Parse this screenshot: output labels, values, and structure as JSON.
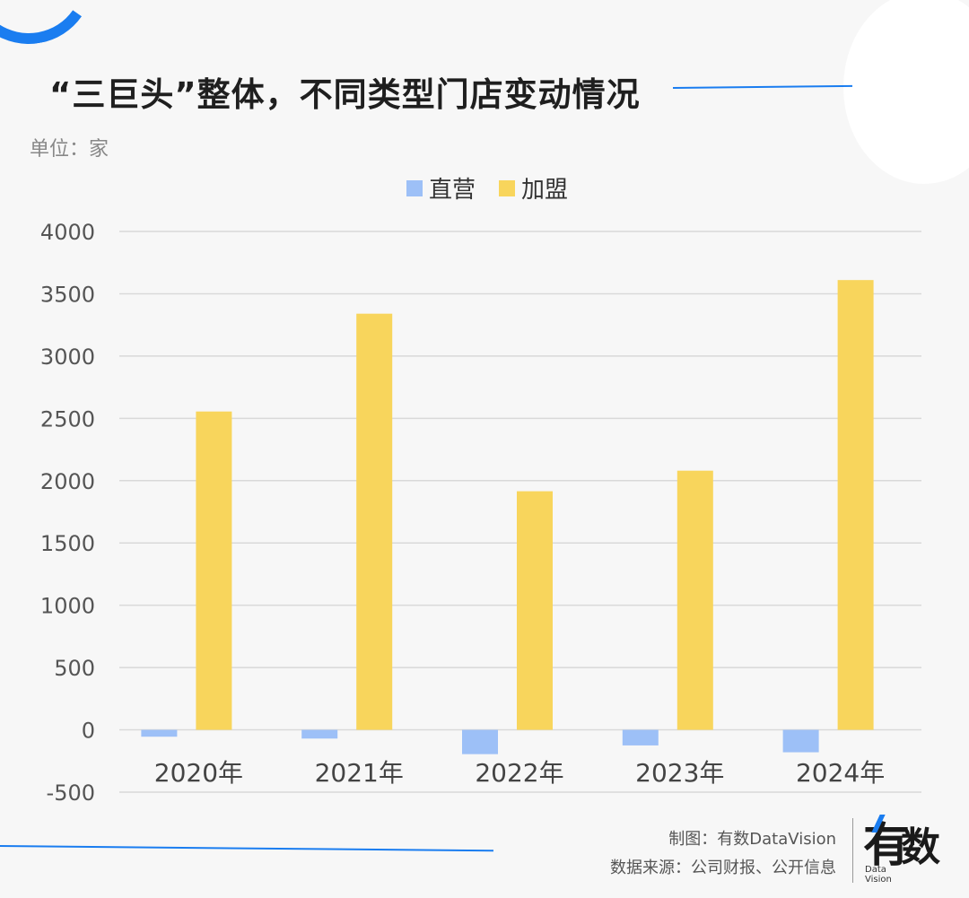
{
  "header": {
    "title": "“三巨头”整体，不同类型门店变动情况",
    "unit": "单位：家"
  },
  "footer": {
    "maker": "制图：有数DataVision",
    "source": "数据来源：公司财报、公开信息",
    "logo_main_1": "有",
    "logo_main_2": "数",
    "logo_sub_1": "Data",
    "logo_sub_2": "Vision"
  },
  "colors": {
    "accent": "#1a7df0",
    "direct": "#9dc0f7",
    "franchise": "#f8d55c",
    "grid": "#d9d9d9"
  },
  "chart_data": {
    "type": "bar",
    "categories": [
      "2020年",
      "2021年",
      "2022年",
      "2023年",
      "2024年"
    ],
    "series": [
      {
        "name": "直营",
        "values": [
          -55,
          -70,
          -195,
          -125,
          -180
        ]
      },
      {
        "name": "加盟",
        "values": [
          2555,
          3340,
          1915,
          2080,
          3610
        ]
      }
    ],
    "ylim": [
      -500,
      4000
    ],
    "yticks": [
      -500,
      0,
      500,
      1000,
      1500,
      2000,
      2500,
      3000,
      3500,
      4000
    ],
    "grid": true,
    "legend": "top-center"
  }
}
